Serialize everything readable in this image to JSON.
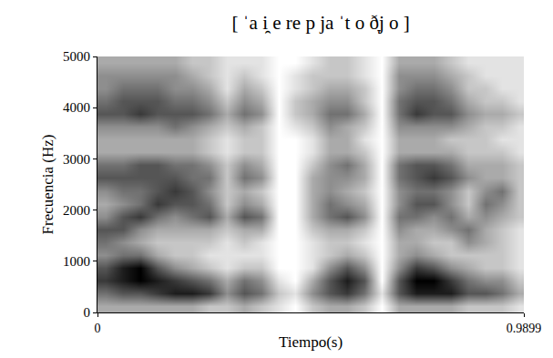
{
  "chart_data": {
    "type": "heatmap",
    "title": "[ ˈa i̯ e re p ja ˈt o ð̞j o ]",
    "x_label": "Tiempo(s)",
    "y_label": "Frecuencia (Hz)",
    "color": "#000000",
    "xlim": [
      0,
      0.9899
    ],
    "xticks": [
      0,
      0.9899
    ],
    "ylim": [
      0,
      5000
    ],
    "yticks": [
      0,
      1000,
      2000,
      3000,
      4000,
      5000
    ],
    "grid": false,
    "x": [
      0.02,
      0.06,
      0.1,
      0.14,
      0.18,
      0.22,
      0.26,
      0.3,
      0.34,
      0.38,
      0.42,
      0.46,
      0.5,
      0.54,
      0.58,
      0.62,
      0.66,
      0.7,
      0.74,
      0.78,
      0.82,
      0.86,
      0.9,
      0.94,
      0.98
    ],
    "y": [
      125,
      375,
      625,
      875,
      1125,
      1375,
      1625,
      1875,
      2125,
      2375,
      2625,
      2875,
      3125,
      3375,
      3625,
      3875,
      4125,
      4375,
      4625,
      4875
    ],
    "z": [
      [
        3,
        3,
        3,
        3,
        3,
        3,
        2,
        2,
        3,
        2,
        1,
        0,
        2,
        3,
        3,
        2,
        0,
        3,
        3,
        3,
        3,
        2,
        2,
        2,
        1
      ],
      [
        5,
        6,
        6,
        7,
        8,
        8,
        7,
        4,
        6,
        5,
        2,
        1,
        4,
        6,
        7,
        5,
        1,
        6,
        8,
        8,
        8,
        6,
        6,
        5,
        3
      ],
      [
        7,
        8,
        9,
        8,
        7,
        6,
        5,
        3,
        5,
        4,
        1,
        0,
        3,
        6,
        8,
        6,
        0,
        6,
        9,
        9,
        7,
        5,
        4,
        4,
        2
      ],
      [
        6,
        8,
        9,
        6,
        4,
        3,
        2,
        1,
        2,
        2,
        0,
        0,
        1,
        4,
        6,
        4,
        0,
        4,
        7,
        6,
        4,
        3,
        2,
        2,
        1
      ],
      [
        4,
        5,
        5,
        3,
        2,
        2,
        1,
        1,
        1,
        1,
        0,
        0,
        1,
        2,
        3,
        2,
        0,
        3,
        4,
        3,
        2,
        2,
        2,
        2,
        1
      ],
      [
        5,
        4,
        3,
        2,
        2,
        2,
        2,
        1,
        2,
        1,
        0,
        0,
        1,
        2,
        2,
        1,
        0,
        3,
        3,
        2,
        2,
        4,
        3,
        2,
        1
      ],
      [
        6,
        6,
        4,
        3,
        3,
        3,
        3,
        2,
        3,
        3,
        0,
        0,
        2,
        3,
        3,
        2,
        0,
        4,
        3,
        3,
        4,
        5,
        3,
        2,
        1
      ],
      [
        4,
        6,
        7,
        5,
        4,
        5,
        6,
        3,
        6,
        5,
        0,
        0,
        3,
        5,
        6,
        4,
        0,
        5,
        5,
        4,
        5,
        3,
        4,
        3,
        2
      ],
      [
        3,
        4,
        5,
        7,
        6,
        6,
        5,
        2,
        4,
        3,
        0,
        0,
        3,
        5,
        4,
        3,
        0,
        4,
        6,
        6,
        4,
        2,
        5,
        4,
        2
      ],
      [
        4,
        5,
        5,
        6,
        7,
        6,
        4,
        2,
        3,
        2,
        0,
        0,
        3,
        4,
        3,
        2,
        0,
        4,
        5,
        5,
        4,
        2,
        4,
        5,
        2
      ],
      [
        6,
        6,
        6,
        6,
        6,
        5,
        5,
        2,
        5,
        4,
        0,
        0,
        3,
        4,
        4,
        3,
        0,
        5,
        6,
        7,
        6,
        4,
        3,
        3,
        2
      ],
      [
        5,
        5,
        6,
        6,
        5,
        5,
        4,
        2,
        4,
        3,
        0,
        0,
        2,
        4,
        5,
        3,
        0,
        5,
        6,
        6,
        5,
        3,
        3,
        3,
        2
      ],
      [
        3,
        3,
        3,
        3,
        3,
        3,
        2,
        1,
        2,
        2,
        0,
        0,
        1,
        3,
        3,
        2,
        0,
        3,
        3,
        3,
        3,
        2,
        2,
        2,
        1
      ],
      [
        3,
        3,
        3,
        3,
        3,
        3,
        2,
        1,
        2,
        2,
        0,
        0,
        1,
        3,
        3,
        1,
        0,
        3,
        3,
        3,
        2,
        2,
        2,
        1,
        1
      ],
      [
        4,
        4,
        4,
        4,
        5,
        4,
        3,
        2,
        3,
        2,
        0,
        1,
        2,
        4,
        3,
        2,
        0,
        4,
        4,
        4,
        4,
        3,
        2,
        2,
        1
      ],
      [
        6,
        6,
        7,
        6,
        6,
        6,
        5,
        3,
        5,
        4,
        0,
        2,
        3,
        5,
        5,
        3,
        0,
        5,
        7,
        6,
        6,
        4,
        3,
        3,
        2
      ],
      [
        5,
        6,
        6,
        6,
        5,
        5,
        4,
        2,
        4,
        3,
        0,
        2,
        3,
        4,
        4,
        2,
        0,
        5,
        6,
        6,
        5,
        3,
        2,
        2,
        1
      ],
      [
        4,
        5,
        5,
        5,
        4,
        4,
        3,
        1,
        3,
        2,
        0,
        1,
        2,
        3,
        3,
        2,
        0,
        4,
        5,
        5,
        4,
        2,
        2,
        1,
        1
      ],
      [
        4,
        4,
        4,
        4,
        4,
        3,
        2,
        1,
        2,
        1,
        0,
        1,
        2,
        2,
        2,
        1,
        0,
        4,
        4,
        4,
        3,
        2,
        1,
        1,
        1
      ],
      [
        3,
        3,
        3,
        3,
        3,
        2,
        2,
        1,
        1,
        1,
        0,
        0,
        1,
        2,
        2,
        1,
        0,
        3,
        3,
        3,
        2,
        1,
        1,
        1,
        1
      ]
    ]
  }
}
